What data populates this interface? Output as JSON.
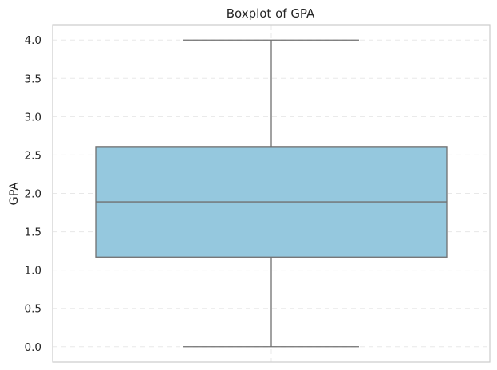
{
  "chart_data": {
    "type": "boxplot",
    "title": "Boxplot of GPA",
    "xlabel": "",
    "ylabel": "GPA",
    "ylim": [
      -0.2,
      4.2
    ],
    "yticks": [
      "0.0",
      "0.5",
      "1.0",
      "1.5",
      "2.0",
      "2.5",
      "3.0",
      "3.5",
      "4.0"
    ],
    "grid": "dashed",
    "stats": {
      "min": 0.0,
      "q1": 1.17,
      "median": 1.89,
      "q3": 2.61,
      "max": 4.0
    },
    "colors": {
      "box_fill": "#95c8de",
      "line": "#707070",
      "grid": "#e8e8e8",
      "frame": "#cccccc"
    }
  }
}
